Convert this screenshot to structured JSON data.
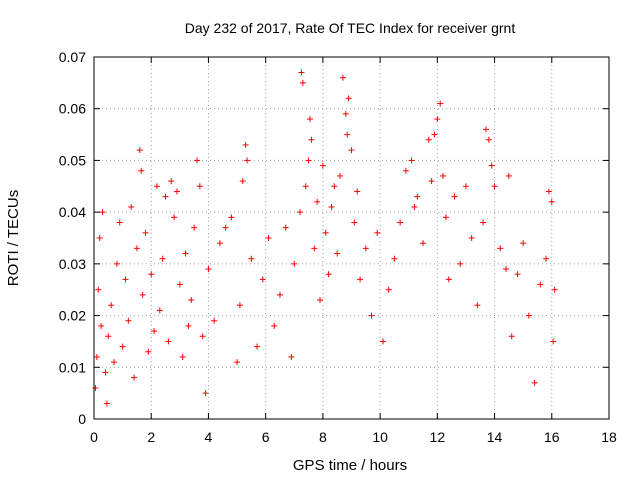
{
  "chart_data": {
    "type": "scatter",
    "title": "Day 232 of 2017, Rate Of TEC Index for receiver grnt",
    "xlabel": "GPS time / hours",
    "ylabel": "ROTI / TECUs",
    "xlim": [
      0,
      18
    ],
    "ylim": [
      0,
      0.07
    ],
    "x_ticks": [
      "0",
      "2",
      "4",
      "6",
      "8",
      "10",
      "12",
      "14",
      "16",
      "18"
    ],
    "y_ticks": [
      "0",
      "0.01",
      "0.02",
      "0.03",
      "0.04",
      "0.05",
      "0.06",
      "0.07"
    ],
    "grid": true,
    "marker": "+",
    "color": "#ff0000",
    "series": [
      {
        "points": [
          [
            0.05,
            0.006
          ],
          [
            0.1,
            0.012
          ],
          [
            0.15,
            0.025
          ],
          [
            0.2,
            0.035
          ],
          [
            0.25,
            0.018
          ],
          [
            0.3,
            0.04
          ],
          [
            0.4,
            0.009
          ],
          [
            0.45,
            0.003
          ],
          [
            0.5,
            0.016
          ],
          [
            0.6,
            0.022
          ],
          [
            0.7,
            0.011
          ],
          [
            0.8,
            0.03
          ],
          [
            0.9,
            0.038
          ],
          [
            1.0,
            0.014
          ],
          [
            1.1,
            0.027
          ],
          [
            1.2,
            0.019
          ],
          [
            1.3,
            0.041
          ],
          [
            1.4,
            0.008
          ],
          [
            1.5,
            0.033
          ],
          [
            1.6,
            0.052
          ],
          [
            1.65,
            0.048
          ],
          [
            1.7,
            0.024
          ],
          [
            1.8,
            0.036
          ],
          [
            1.9,
            0.013
          ],
          [
            2.0,
            0.028
          ],
          [
            2.1,
            0.017
          ],
          [
            2.2,
            0.045
          ],
          [
            2.3,
            0.021
          ],
          [
            2.4,
            0.031
          ],
          [
            2.5,
            0.043
          ],
          [
            2.6,
            0.015
          ],
          [
            2.7,
            0.046
          ],
          [
            2.8,
            0.039
          ],
          [
            2.9,
            0.044
          ],
          [
            3.0,
            0.026
          ],
          [
            3.1,
            0.012
          ],
          [
            3.2,
            0.032
          ],
          [
            3.3,
            0.018
          ],
          [
            3.4,
            0.023
          ],
          [
            3.5,
            0.037
          ],
          [
            3.6,
            0.05
          ],
          [
            3.7,
            0.045
          ],
          [
            3.8,
            0.016
          ],
          [
            3.9,
            0.005
          ],
          [
            4.0,
            0.029
          ],
          [
            4.2,
            0.019
          ],
          [
            4.4,
            0.034
          ],
          [
            4.6,
            0.037
          ],
          [
            4.8,
            0.039
          ],
          [
            5.0,
            0.011
          ],
          [
            5.1,
            0.022
          ],
          [
            5.2,
            0.046
          ],
          [
            5.3,
            0.053
          ],
          [
            5.35,
            0.05
          ],
          [
            5.5,
            0.031
          ],
          [
            5.7,
            0.014
          ],
          [
            5.9,
            0.027
          ],
          [
            6.1,
            0.035
          ],
          [
            6.3,
            0.018
          ],
          [
            6.5,
            0.024
          ],
          [
            6.7,
            0.037
          ],
          [
            6.9,
            0.012
          ],
          [
            7.0,
            0.03
          ],
          [
            7.2,
            0.04
          ],
          [
            7.25,
            0.067
          ],
          [
            7.3,
            0.065
          ],
          [
            7.4,
            0.045
          ],
          [
            7.5,
            0.05
          ],
          [
            7.55,
            0.058
          ],
          [
            7.6,
            0.054
          ],
          [
            7.7,
            0.033
          ],
          [
            7.8,
            0.042
          ],
          [
            7.9,
            0.023
          ],
          [
            8.0,
            0.049
          ],
          [
            8.1,
            0.036
          ],
          [
            8.2,
            0.028
          ],
          [
            8.3,
            0.041
          ],
          [
            8.4,
            0.045
          ],
          [
            8.5,
            0.032
          ],
          [
            8.6,
            0.047
          ],
          [
            8.7,
            0.066
          ],
          [
            8.8,
            0.059
          ],
          [
            8.85,
            0.055
          ],
          [
            8.9,
            0.062
          ],
          [
            9.0,
            0.052
          ],
          [
            9.1,
            0.038
          ],
          [
            9.2,
            0.044
          ],
          [
            9.3,
            0.027
          ],
          [
            9.5,
            0.033
          ],
          [
            9.7,
            0.02
          ],
          [
            9.9,
            0.036
          ],
          [
            10.1,
            0.015
          ],
          [
            10.3,
            0.025
          ],
          [
            10.5,
            0.031
          ],
          [
            10.7,
            0.038
          ],
          [
            10.9,
            0.048
          ],
          [
            11.1,
            0.05
          ],
          [
            11.2,
            0.041
          ],
          [
            11.3,
            0.043
          ],
          [
            11.5,
            0.034
          ],
          [
            11.7,
            0.054
          ],
          [
            11.8,
            0.046
          ],
          [
            11.9,
            0.055
          ],
          [
            12.0,
            0.058
          ],
          [
            12.1,
            0.061
          ],
          [
            12.2,
            0.047
          ],
          [
            12.3,
            0.039
          ],
          [
            12.4,
            0.027
          ],
          [
            12.6,
            0.043
          ],
          [
            12.8,
            0.03
          ],
          [
            13.0,
            0.045
          ],
          [
            13.2,
            0.035
          ],
          [
            13.4,
            0.022
          ],
          [
            13.6,
            0.038
          ],
          [
            13.7,
            0.056
          ],
          [
            13.8,
            0.054
          ],
          [
            13.9,
            0.049
          ],
          [
            14.0,
            0.045
          ],
          [
            14.2,
            0.033
          ],
          [
            14.4,
            0.029
          ],
          [
            14.5,
            0.047
          ],
          [
            14.6,
            0.016
          ],
          [
            14.8,
            0.028
          ],
          [
            15.0,
            0.034
          ],
          [
            15.2,
            0.02
          ],
          [
            15.4,
            0.007
          ],
          [
            15.6,
            0.026
          ],
          [
            15.8,
            0.031
          ],
          [
            15.9,
            0.044
          ],
          [
            16.0,
            0.042
          ],
          [
            16.05,
            0.015
          ],
          [
            16.1,
            0.025
          ]
        ]
      }
    ]
  }
}
